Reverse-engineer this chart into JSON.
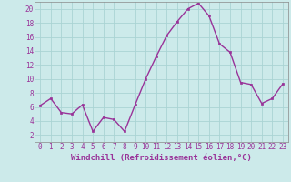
{
  "x": [
    0,
    1,
    2,
    3,
    4,
    5,
    6,
    7,
    8,
    9,
    10,
    11,
    12,
    13,
    14,
    15,
    16,
    17,
    18,
    19,
    20,
    21,
    22,
    23
  ],
  "y": [
    6.2,
    7.2,
    5.2,
    5.0,
    6.3,
    2.5,
    4.5,
    4.2,
    2.5,
    6.3,
    10.0,
    13.2,
    16.2,
    18.2,
    20.0,
    20.8,
    19.0,
    15.0,
    13.8,
    9.5,
    9.2,
    6.5,
    7.2,
    9.3
  ],
  "line_color": "#993399",
  "marker": "s",
  "markersize": 2,
  "linewidth": 1.0,
  "xlabel": "Windchill (Refroidissement éolien,°C)",
  "xlabel_fontsize": 6.5,
  "xlim": [
    -0.5,
    23.5
  ],
  "ylim": [
    1.0,
    21.0
  ],
  "yticks": [
    2,
    4,
    6,
    8,
    10,
    12,
    14,
    16,
    18,
    20
  ],
  "xticks": [
    0,
    1,
    2,
    3,
    4,
    5,
    6,
    7,
    8,
    9,
    10,
    11,
    12,
    13,
    14,
    15,
    16,
    17,
    18,
    19,
    20,
    21,
    22,
    23
  ],
  "grid_color": "#aad4d4",
  "bg_color": "#cceaea",
  "tick_fontsize": 5.5,
  "fig_bg": "#cceaea",
  "spine_color": "#888888"
}
